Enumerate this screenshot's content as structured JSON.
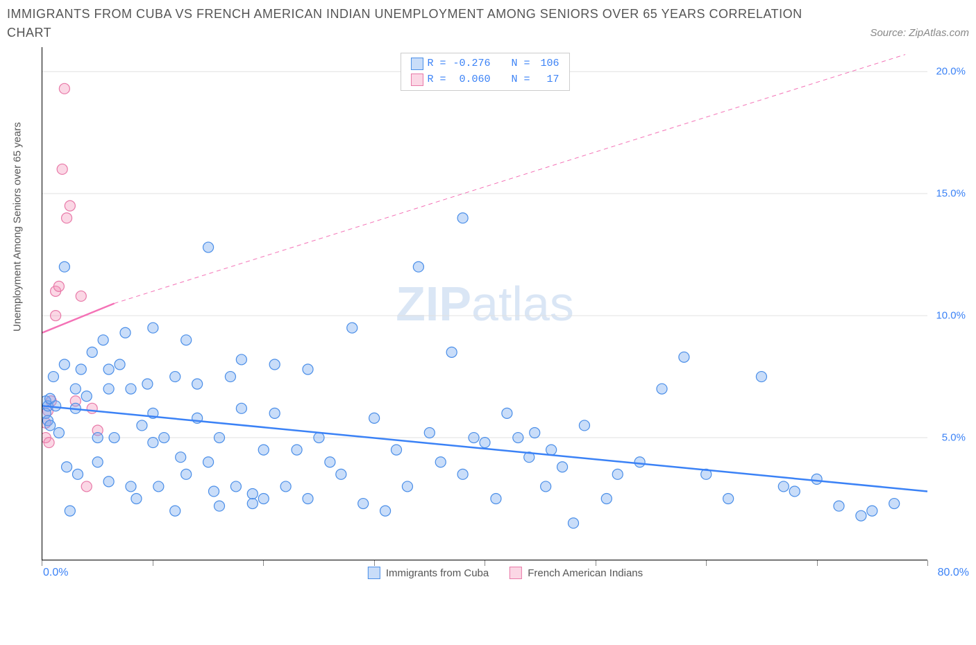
{
  "title_line1": "IMMIGRANTS FROM CUBA VS FRENCH AMERICAN INDIAN UNEMPLOYMENT AMONG SENIORS OVER 65 YEARS CORRELATION",
  "title_line2": "CHART",
  "source_label": "Source: ZipAtlas.com",
  "y_axis_label": "Unemployment Among Seniors over 65 years",
  "watermark": {
    "part1": "ZIP",
    "part2": "atlas"
  },
  "chart": {
    "type": "scatter",
    "xlim": [
      0,
      80
    ],
    "ylim": [
      0,
      21
    ],
    "x_ticks": [
      0,
      10,
      20,
      30,
      40,
      50,
      60,
      70,
      80
    ],
    "y_ticks": [
      5,
      10,
      15,
      20
    ],
    "x_tick_labels_shown": {
      "first": "0.0%",
      "last": "80.0%"
    },
    "y_tick_labels": [
      "5.0%",
      "10.0%",
      "15.0%",
      "20.0%"
    ],
    "background_color": "#ffffff",
    "grid_color": "#e0e0e0",
    "axis_color": "#000000",
    "marker_radius": 7.5,
    "marker_fill_opacity": 0.35,
    "marker_stroke_width": 1.2,
    "series": {
      "s1": {
        "label": "Immigrants from Cuba",
        "color": "#3b82f6",
        "fill": "rgba(120,170,240,0.4)",
        "stroke": "#4a8ee8",
        "R_label": "R =",
        "R": "-0.276",
        "N_label": "N =",
        "N": "106",
        "trend": {
          "x1": 0,
          "y1": 6.3,
          "x2": 80,
          "y2": 2.8,
          "width": 2.5,
          "dash": "none"
        },
        "points": [
          [
            0.3,
            6.0
          ],
          [
            0.3,
            6.5
          ],
          [
            0.5,
            5.7
          ],
          [
            0.5,
            6.3
          ],
          [
            0.7,
            5.5
          ],
          [
            0.7,
            6.6
          ],
          [
            1,
            7.5
          ],
          [
            1.2,
            6.3
          ],
          [
            1.5,
            5.2
          ],
          [
            2,
            8.0
          ],
          [
            2,
            12.0
          ],
          [
            2.2,
            3.8
          ],
          [
            2.5,
            2.0
          ],
          [
            3,
            7.0
          ],
          [
            3,
            6.2
          ],
          [
            3.2,
            3.5
          ],
          [
            3.5,
            7.8
          ],
          [
            4,
            6.7
          ],
          [
            4.5,
            8.5
          ],
          [
            5,
            4.0
          ],
          [
            5,
            5.0
          ],
          [
            5.5,
            9.0
          ],
          [
            6,
            7.8
          ],
          [
            6,
            7.0
          ],
          [
            6,
            3.2
          ],
          [
            6.5,
            5.0
          ],
          [
            7,
            8.0
          ],
          [
            7.5,
            9.3
          ],
          [
            8,
            7.0
          ],
          [
            8,
            3.0
          ],
          [
            8.5,
            2.5
          ],
          [
            9,
            5.5
          ],
          [
            9.5,
            7.2
          ],
          [
            10,
            9.5
          ],
          [
            10,
            6.0
          ],
          [
            10,
            4.8
          ],
          [
            10.5,
            3.0
          ],
          [
            11,
            5.0
          ],
          [
            12,
            7.5
          ],
          [
            12,
            2.0
          ],
          [
            12.5,
            4.2
          ],
          [
            13,
            9.0
          ],
          [
            13,
            3.5
          ],
          [
            14,
            7.2
          ],
          [
            14,
            5.8
          ],
          [
            15,
            12.8
          ],
          [
            15,
            4.0
          ],
          [
            15.5,
            2.8
          ],
          [
            16,
            5.0
          ],
          [
            16,
            2.2
          ],
          [
            17,
            7.5
          ],
          [
            17.5,
            3.0
          ],
          [
            18,
            6.2
          ],
          [
            18,
            8.2
          ],
          [
            19,
            2.7
          ],
          [
            19,
            2.3
          ],
          [
            20,
            4.5
          ],
          [
            20,
            2.5
          ],
          [
            21,
            6.0
          ],
          [
            21,
            8.0
          ],
          [
            22,
            3.0
          ],
          [
            23,
            4.5
          ],
          [
            24,
            2.5
          ],
          [
            24,
            7.8
          ],
          [
            25,
            5.0
          ],
          [
            26,
            4.0
          ],
          [
            27,
            3.5
          ],
          [
            28,
            9.5
          ],
          [
            29,
            2.3
          ],
          [
            30,
            5.8
          ],
          [
            31,
            2.0
          ],
          [
            32,
            4.5
          ],
          [
            33,
            3.0
          ],
          [
            34,
            12.0
          ],
          [
            35,
            5.2
          ],
          [
            36,
            4.0
          ],
          [
            37,
            8.5
          ],
          [
            38,
            3.5
          ],
          [
            38,
            14.0
          ],
          [
            39,
            5.0
          ],
          [
            40,
            4.8
          ],
          [
            41,
            2.5
          ],
          [
            42,
            6.0
          ],
          [
            43,
            5.0
          ],
          [
            44,
            4.2
          ],
          [
            44.5,
            5.2
          ],
          [
            45.5,
            3.0
          ],
          [
            46,
            4.5
          ],
          [
            47,
            3.8
          ],
          [
            48,
            1.5
          ],
          [
            49,
            5.5
          ],
          [
            51,
            2.5
          ],
          [
            52,
            3.5
          ],
          [
            54,
            4.0
          ],
          [
            56,
            7.0
          ],
          [
            58,
            8.3
          ],
          [
            60,
            3.5
          ],
          [
            62,
            2.5
          ],
          [
            65,
            7.5
          ],
          [
            67,
            3.0
          ],
          [
            68,
            2.8
          ],
          [
            70,
            3.3
          ],
          [
            72,
            2.2
          ],
          [
            74,
            1.8
          ],
          [
            75,
            2.0
          ],
          [
            77,
            2.3
          ]
        ]
      },
      "s2": {
        "label": "French American Indians",
        "color": "#f472b6",
        "fill": "rgba(244,140,180,0.35)",
        "stroke": "#e879a8",
        "R_label": "R =",
        "R": "0.060",
        "N_label": "N =",
        "N": "17",
        "trend_solid": {
          "x1": 0,
          "y1": 9.3,
          "x2": 6.5,
          "y2": 10.5,
          "width": 2.5
        },
        "trend_dashed": {
          "x1": 6.5,
          "y1": 10.5,
          "x2": 78,
          "y2": 20.7,
          "width": 1,
          "dash": "6,5"
        },
        "points": [
          [
            0.3,
            5.0
          ],
          [
            0.3,
            5.6
          ],
          [
            0.5,
            6.1
          ],
          [
            0.6,
            4.8
          ],
          [
            0.8,
            6.5
          ],
          [
            1.2,
            10.0
          ],
          [
            1.2,
            11.0
          ],
          [
            1.5,
            11.2
          ],
          [
            1.8,
            16.0
          ],
          [
            2,
            19.3
          ],
          [
            2.2,
            14.0
          ],
          [
            2.5,
            14.5
          ],
          [
            3,
            6.5
          ],
          [
            3.5,
            10.8
          ],
          [
            4,
            3.0
          ],
          [
            4.5,
            6.2
          ],
          [
            5,
            5.3
          ]
        ]
      }
    }
  },
  "stat_box": {
    "rows": [
      {
        "series": "s1"
      },
      {
        "series": "s2"
      }
    ]
  },
  "bottom_legend": [
    {
      "series": "s1"
    },
    {
      "series": "s2"
    }
  ]
}
